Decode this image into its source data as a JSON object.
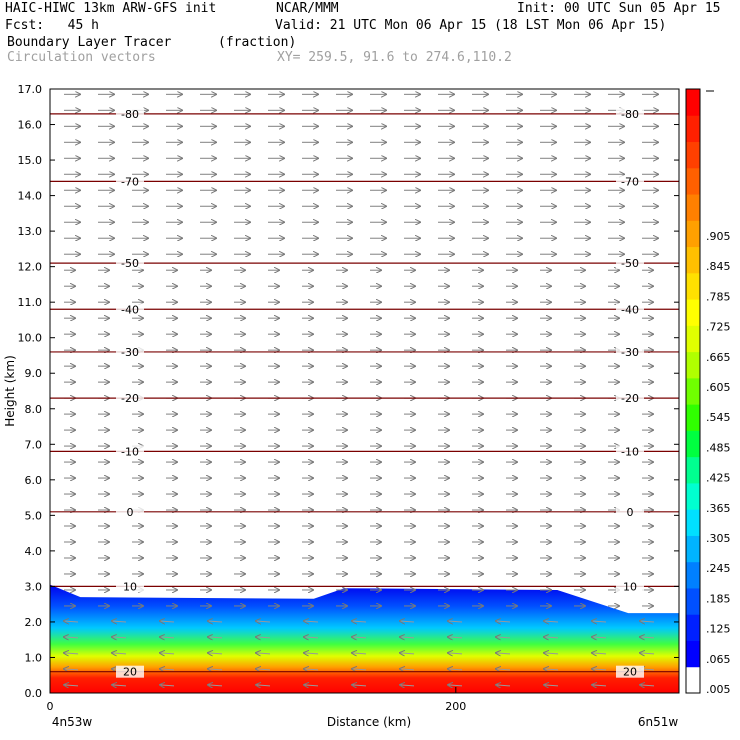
{
  "header": {
    "model": "HAIC-HIWC 13km ARW-GFS init",
    "org": "NCAR/MMM",
    "init": "Init: 00 UTC Sun 05 Apr 15",
    "fcst": "Fcst:   45 h",
    "valid": "Valid: 21 UTC Mon 06 Apr 15 (18 LST Mon 06 Apr 15)",
    "field": "Boundary Layer Tracer",
    "units": "(fraction)",
    "overlay": "Circulation vectors",
    "xy": "XY= 259.5, 91.6 to 274.6,110.2"
  },
  "chart_data": {
    "type": "cross-section",
    "ylabel": "Height (km)",
    "xlabel": "Distance (km)",
    "ylim": [
      0.0,
      17.0
    ],
    "xlim": [
      0,
      310
    ],
    "y_ticks": [
      "0.0",
      "1.0",
      "2.0",
      "3.0",
      "4.0",
      "5.0",
      "6.0",
      "7.0",
      "8.0",
      "9.0",
      "10.0",
      "11.0",
      "12.0",
      "13.0",
      "14.0",
      "15.0",
      "16.0",
      "17.0"
    ],
    "x_ticks": [
      {
        "value": 0,
        "label": "0"
      },
      {
        "value": 200,
        "label": "200"
      }
    ],
    "x_end_labels": {
      "left": "4n53w",
      "right": "6n51w"
    },
    "colorbar": {
      "labels": [
        ".005",
        ".065",
        ".125",
        ".185",
        ".245",
        ".305",
        ".365",
        ".425",
        ".485",
        ".545",
        ".605",
        ".665",
        ".725",
        ".785",
        ".845",
        ".905"
      ],
      "colors": [
        "#ffffff",
        "#0000ff",
        "#0020ff",
        "#0050ff",
        "#0080ff",
        "#00b4ff",
        "#00e0ff",
        "#00ffd0",
        "#00ff90",
        "#00ff40",
        "#30ff00",
        "#70ff00",
        "#b0ff00",
        "#e0ff00",
        "#ffff00",
        "#ffe000",
        "#ffc000",
        "#ffa000",
        "#ff8000",
        "#ff6000",
        "#ff4000",
        "#ff2000",
        "#ff0000"
      ]
    },
    "temperature_contours": [
      {
        "label": "20",
        "height_km": 0.6
      },
      {
        "label": "10",
        "height_km": 3.0
      },
      {
        "label": "0",
        "height_km": 5.1
      },
      {
        "label": "-10",
        "height_km": 6.8
      },
      {
        "label": "-20",
        "height_km": 8.3
      },
      {
        "label": "-30",
        "height_km": 9.6
      },
      {
        "label": "-40",
        "height_km": 10.8
      },
      {
        "label": "-50",
        "height_km": 12.1
      },
      {
        "label": "-70",
        "height_km": 14.4
      },
      {
        "label": "-80",
        "height_km": 16.3
      }
    ],
    "tracer_top_km": [
      {
        "x": 0,
        "y": 3.05
      },
      {
        "x": 15,
        "y": 2.7
      },
      {
        "x": 130,
        "y": 2.65
      },
      {
        "x": 145,
        "y": 2.95
      },
      {
        "x": 250,
        "y": 2.9
      },
      {
        "x": 285,
        "y": 2.25
      },
      {
        "x": 310,
        "y": 2.25
      }
    ]
  }
}
